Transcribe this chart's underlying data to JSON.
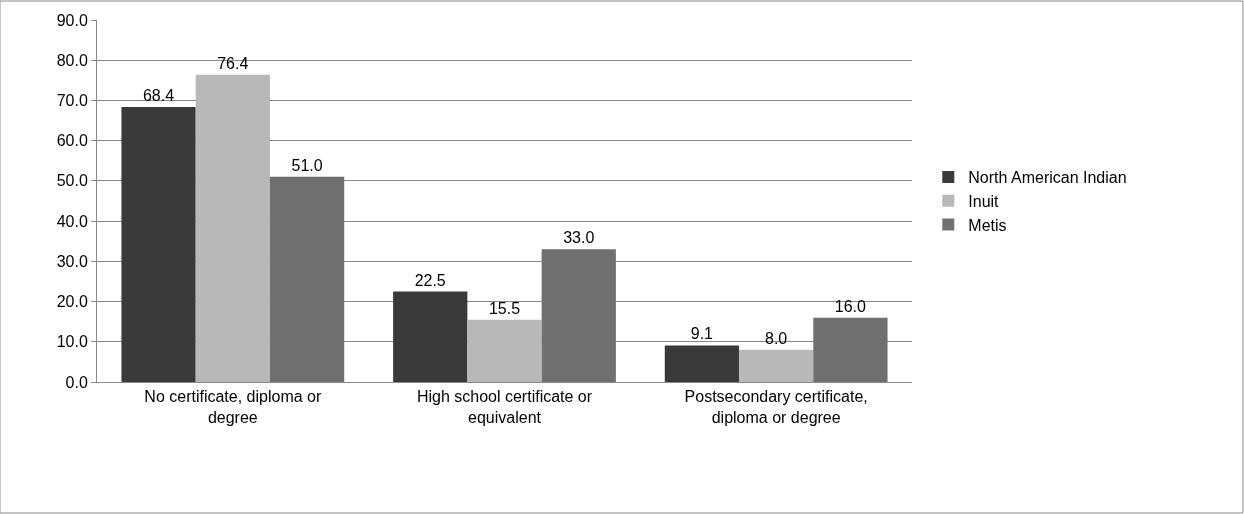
{
  "chart_data": {
    "type": "bar",
    "categories": [
      "No certificate, diploma or degree",
      "High school certificate or equivalent",
      "Postsecondary certificate, diploma or degree"
    ],
    "series": [
      {
        "name": "North American Indian",
        "color": "#3a3a3a",
        "values": [
          68.4,
          22.5,
          9.1
        ],
        "value_labels": [
          "68.4",
          "22.5",
          "9.1"
        ]
      },
      {
        "name": "Inuit",
        "color": "#b8b8b8",
        "values": [
          76.4,
          15.5,
          8.0
        ],
        "value_labels": [
          "76.4",
          "15.5",
          "8.0"
        ]
      },
      {
        "name": "Metis",
        "color": "#707070",
        "values": [
          51.0,
          33.0,
          16.0
        ],
        "value_labels": [
          "51.0",
          "33.0",
          "16.0"
        ]
      }
    ],
    "ylim": [
      0,
      90
    ],
    "yticks": [
      {
        "value": 0,
        "label": "0.0"
      },
      {
        "value": 10,
        "label": "10.0"
      },
      {
        "value": 20,
        "label": "20.0"
      },
      {
        "value": 30,
        "label": "30.0"
      },
      {
        "value": 40,
        "label": "40.0"
      },
      {
        "value": 50,
        "label": "50.0"
      },
      {
        "value": 60,
        "label": "60.0"
      },
      {
        "value": 70,
        "label": "70.0"
      },
      {
        "value": 80,
        "label": "80.0"
      },
      {
        "value": 90,
        "label": "90.0"
      }
    ],
    "grid": "y",
    "legend": "right"
  }
}
